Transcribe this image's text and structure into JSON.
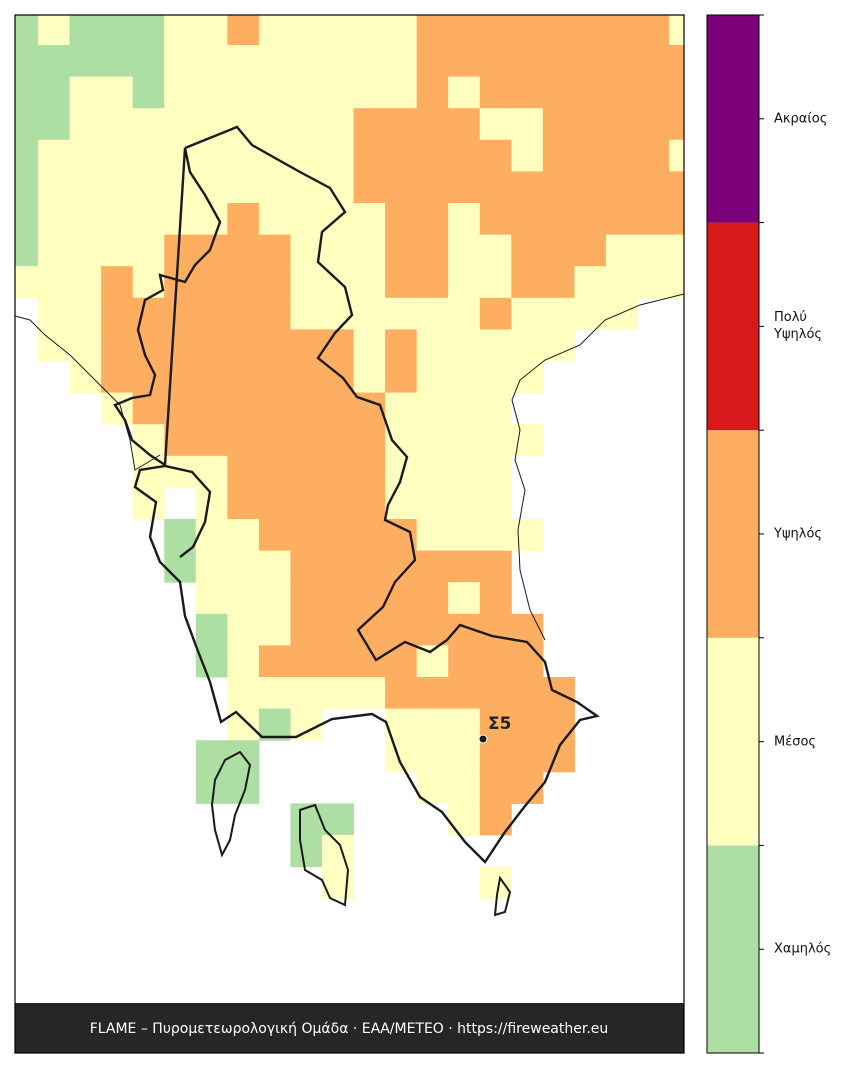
{
  "map": {
    "levels": [
      {
        "label": "Χαμηλός",
        "color": "#addfa4"
      },
      {
        "label": "Μέσος",
        "color": "#ffffbf"
      },
      {
        "label": "Υψηλός",
        "color": "#fdae61"
      },
      {
        "label": "Πολύ\nΥψηλός",
        "color": "#d7191c"
      },
      {
        "label": "Ακραίος",
        "color": "#7b0078"
      }
    ],
    "grid": [
      [
        1,
        2,
        1,
        1,
        1,
        2,
        2,
        3,
        2,
        2,
        2,
        2,
        2,
        3,
        3,
        3,
        3,
        3,
        3,
        3,
        3,
        2
      ],
      [
        1,
        1,
        1,
        1,
        1,
        2,
        2,
        2,
        2,
        2,
        2,
        2,
        2,
        3,
        3,
        3,
        3,
        3,
        3,
        3,
        3,
        3
      ],
      [
        1,
        1,
        2,
        2,
        1,
        2,
        2,
        2,
        2,
        2,
        2,
        2,
        2,
        3,
        2,
        3,
        3,
        3,
        3,
        3,
        3,
        3
      ],
      [
        1,
        1,
        2,
        2,
        2,
        2,
        2,
        2,
        2,
        2,
        2,
        3,
        3,
        3,
        3,
        2,
        2,
        3,
        3,
        3,
        3,
        3
      ],
      [
        1,
        2,
        2,
        2,
        2,
        2,
        2,
        2,
        2,
        2,
        2,
        3,
        3,
        3,
        3,
        3,
        2,
        3,
        3,
        3,
        3,
        2
      ],
      [
        1,
        2,
        2,
        2,
        2,
        2,
        2,
        2,
        2,
        2,
        2,
        3,
        3,
        3,
        3,
        3,
        3,
        3,
        3,
        3,
        3,
        3
      ],
      [
        1,
        2,
        2,
        2,
        2,
        2,
        2,
        3,
        2,
        2,
        2,
        2,
        3,
        3,
        2,
        3,
        3,
        3,
        3,
        3,
        3,
        3
      ],
      [
        1,
        2,
        2,
        2,
        2,
        3,
        3,
        3,
        3,
        2,
        2,
        2,
        3,
        3,
        2,
        2,
        3,
        3,
        3,
        2,
        2,
        2
      ],
      [
        2,
        2,
        2,
        3,
        2,
        3,
        3,
        3,
        3,
        2,
        2,
        2,
        3,
        3,
        2,
        2,
        3,
        3,
        2,
        2,
        2,
        2
      ],
      [
        null,
        2,
        2,
        3,
        3,
        3,
        3,
        3,
        3,
        2,
        2,
        2,
        2,
        2,
        2,
        3,
        2,
        2,
        2,
        2,
        null,
        null
      ],
      [
        null,
        2,
        2,
        3,
        3,
        3,
        3,
        3,
        3,
        3,
        3,
        2,
        3,
        2,
        2,
        2,
        2,
        2,
        null,
        null,
        null,
        null
      ],
      [
        null,
        null,
        2,
        3,
        3,
        3,
        3,
        3,
        3,
        3,
        3,
        2,
        3,
        2,
        2,
        2,
        2,
        null,
        null,
        null,
        null,
        null
      ],
      [
        null,
        null,
        null,
        2,
        3,
        3,
        3,
        3,
        3,
        3,
        3,
        3,
        2,
        2,
        2,
        2,
        null,
        null,
        null,
        null,
        null,
        null
      ],
      [
        null,
        null,
        null,
        null,
        2,
        3,
        3,
        3,
        3,
        3,
        3,
        3,
        2,
        2,
        2,
        2,
        2,
        null,
        null,
        null,
        null,
        null
      ],
      [
        null,
        null,
        null,
        null,
        2,
        2,
        2,
        3,
        3,
        3,
        3,
        3,
        2,
        2,
        2,
        2,
        null,
        null,
        null,
        null,
        null,
        null
      ],
      [
        null,
        null,
        null,
        null,
        2,
        null,
        2,
        3,
        3,
        3,
        3,
        3,
        2,
        2,
        2,
        2,
        null,
        null,
        null,
        null,
        null,
        null
      ],
      [
        null,
        null,
        null,
        null,
        null,
        1,
        2,
        2,
        3,
        3,
        3,
        3,
        3,
        2,
        2,
        2,
        2,
        null,
        null,
        null,
        null,
        null
      ],
      [
        null,
        null,
        null,
        null,
        null,
        1,
        2,
        2,
        2,
        3,
        3,
        3,
        3,
        3,
        3,
        3,
        null,
        null,
        null,
        null,
        null,
        null
      ],
      [
        null,
        null,
        null,
        null,
        null,
        null,
        2,
        2,
        2,
        3,
        3,
        3,
        3,
        3,
        2,
        3,
        null,
        null,
        null,
        null,
        null,
        null
      ],
      [
        null,
        null,
        null,
        null,
        null,
        null,
        1,
        2,
        2,
        3,
        3,
        3,
        3,
        3,
        3,
        3,
        3,
        null,
        null,
        null,
        null,
        null
      ],
      [
        null,
        null,
        null,
        null,
        null,
        null,
        1,
        2,
        3,
        3,
        3,
        3,
        3,
        2,
        3,
        3,
        3,
        null,
        null,
        null,
        null,
        null
      ],
      [
        null,
        null,
        null,
        null,
        null,
        null,
        null,
        2,
        2,
        2,
        2,
        2,
        3,
        3,
        3,
        3,
        3,
        3,
        null,
        null,
        null,
        null
      ],
      [
        null,
        null,
        null,
        null,
        null,
        null,
        null,
        2,
        1,
        2,
        null,
        null,
        2,
        2,
        2,
        3,
        3,
        3,
        null,
        null,
        null,
        null
      ],
      [
        null,
        null,
        null,
        null,
        null,
        null,
        1,
        1,
        null,
        null,
        null,
        null,
        2,
        2,
        2,
        3,
        3,
        3,
        null,
        null,
        null,
        null
      ],
      [
        null,
        null,
        null,
        null,
        null,
        null,
        1,
        1,
        null,
        null,
        null,
        null,
        null,
        2,
        2,
        3,
        3,
        null,
        null,
        null,
        null,
        null
      ],
      [
        null,
        null,
        null,
        null,
        null,
        null,
        null,
        null,
        null,
        1,
        1,
        null,
        null,
        null,
        2,
        3,
        null,
        null,
        null,
        null,
        null,
        null
      ],
      [
        null,
        null,
        null,
        null,
        null,
        null,
        null,
        null,
        null,
        1,
        2,
        null,
        null,
        null,
        null,
        null,
        null,
        null,
        null,
        null,
        null,
        null
      ],
      [
        null,
        null,
        null,
        null,
        null,
        null,
        null,
        null,
        null,
        null,
        2,
        null,
        null,
        null,
        null,
        2,
        null,
        null,
        null,
        null,
        null,
        null
      ]
    ],
    "station": "Σ5",
    "footer": "FLAME – Πυρομετεωρολογική Ομάδα · ΕΑΑ/METEO · https://fireweather.eu"
  }
}
